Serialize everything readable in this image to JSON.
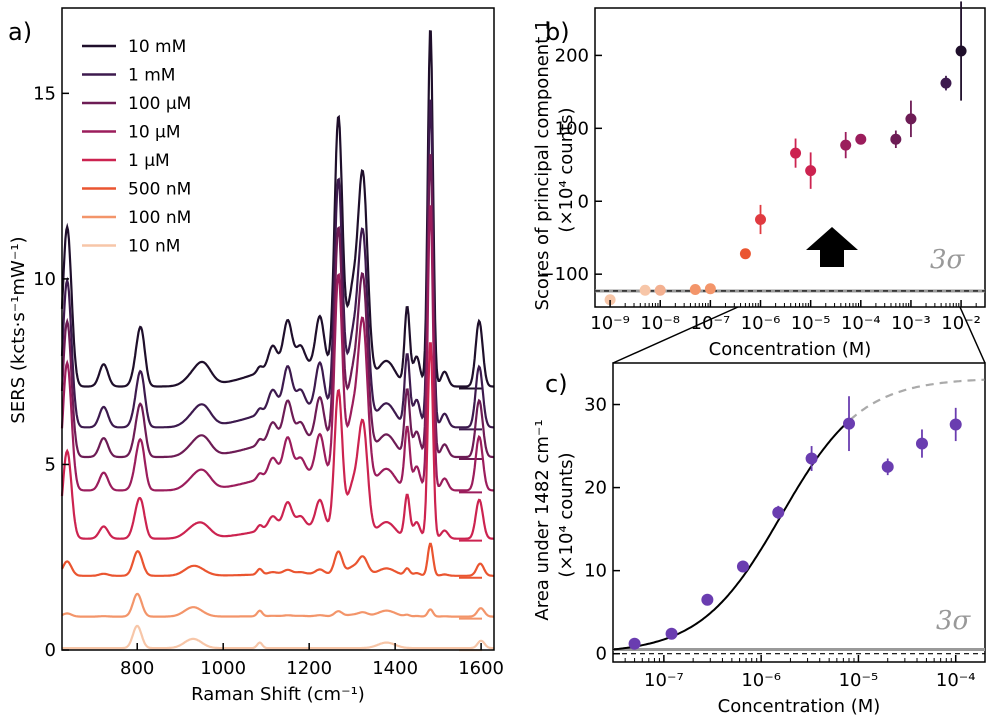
{
  "panel_labels": {
    "a": "a)",
    "b": "b)",
    "c": "c)"
  },
  "sigma_label": "3σ",
  "colors": {
    "c10mM": "#1f0f2b",
    "c1mM": "#3d1a4e",
    "c100uM": "#6d1c55",
    "c10uM": "#9b1d5c",
    "c1uM": "#cc2350",
    "c500nM": "#ea5530",
    "c100nM": "#f3956a",
    "c10nM": "#f7c6a8",
    "purple": "#6a3db0",
    "sigma_line": "#999999"
  },
  "chart_data": [
    {
      "id": "a",
      "type": "line",
      "title": "",
      "xlabel": "Raman Shift (cm⁻¹)",
      "ylabel": "SERS (kcts·s⁻¹mW⁻¹)",
      "xlim": [
        625,
        1630
      ],
      "ylim": [
        0,
        17.3
      ],
      "xticks": [
        800,
        1000,
        1200,
        1400,
        1600
      ],
      "yticks": [
        0,
        5,
        10,
        15
      ],
      "legend_position": "top-left",
      "series": [
        {
          "name": "10 mM",
          "color": "#1f0f2b",
          "baseline": 7.1,
          "scale": 1.0
        },
        {
          "name": "1 mM",
          "color": "#3d1a4e",
          "baseline": 6.0,
          "scale": 0.92
        },
        {
          "name": "100 μM",
          "color": "#6d1c55",
          "baseline": 5.2,
          "scale": 0.85
        },
        {
          "name": "10 μM",
          "color": "#9b1d5c",
          "baseline": 4.3,
          "scale": 0.8
        },
        {
          "name": "1 μM",
          "color": "#cc2350",
          "baseline": 3.0,
          "scale": 0.55
        },
        {
          "name": "500 nM",
          "color": "#ea5530",
          "baseline": 2.0,
          "scale": 0.09
        },
        {
          "name": "100 nM",
          "color": "#f3956a",
          "baseline": 0.9,
          "scale": 0.02
        },
        {
          "name": "10 nM",
          "color": "#f7c6a8",
          "baseline": 0.05,
          "scale": 0.0
        }
      ]
    },
    {
      "id": "b",
      "type": "scatter",
      "title": "",
      "xlabel": "Concentration (M)",
      "ylabel": "Scores of principal component 1",
      "ylabel2": "(×10⁴ counts)",
      "xscale": "log",
      "xlim": [
        5e-10,
        0.03
      ],
      "ylim": [
        -145,
        265
      ],
      "yticks": [
        -100,
        0,
        100,
        200
      ],
      "xticks": [
        "10⁻⁹",
        "10⁻⁸",
        "10⁻⁷",
        "10⁻⁶",
        "10⁻⁵",
        "10⁻⁴",
        "10⁻³",
        "10⁻²"
      ],
      "sigma_level": -123,
      "points": [
        {
          "x": 1e-09,
          "y": -135,
          "err": 0,
          "color": "#f7c6a8"
        },
        {
          "x": 5e-09,
          "y": -122,
          "err": 0,
          "color": "#f7c6a8"
        },
        {
          "x": 1e-08,
          "y": -122,
          "err": 0,
          "color": "#f3b090"
        },
        {
          "x": 5e-08,
          "y": -121,
          "err": 0,
          "color": "#f3956a"
        },
        {
          "x": 1e-07,
          "y": -120,
          "err": 0,
          "color": "#f3956a"
        },
        {
          "x": 5e-07,
          "y": -72,
          "err": 0,
          "color": "#ea5530"
        },
        {
          "x": 1e-06,
          "y": -25,
          "err": 20,
          "color": "#e03a40"
        },
        {
          "x": 5e-06,
          "y": 66,
          "err": 20,
          "color": "#cc2350"
        },
        {
          "x": 1e-05,
          "y": 42,
          "err": 25,
          "color": "#cc2350"
        },
        {
          "x": 5e-05,
          "y": 77,
          "err": 18,
          "color": "#9b1d5c"
        },
        {
          "x": 0.0001,
          "y": 85,
          "err": 0,
          "color": "#9b1d5c"
        },
        {
          "x": 0.0005,
          "y": 85,
          "err": 12,
          "color": "#6d1c55"
        },
        {
          "x": 0.001,
          "y": 113,
          "err": 25,
          "color": "#6d1c55"
        },
        {
          "x": 0.005,
          "y": 162,
          "err": 10,
          "color": "#3d1a4e"
        },
        {
          "x": 0.01,
          "y": 206,
          "err": 68,
          "color": "#1f0f2b"
        }
      ]
    },
    {
      "id": "c",
      "type": "scatter",
      "title": "",
      "xlabel": "Concentration (M)",
      "ylabel": "Area under 1482 cm⁻¹",
      "ylabel2": "(×10⁴ counts)",
      "xscale": "log",
      "xlim": [
        3e-08,
        0.0002
      ],
      "ylim": [
        -1,
        35
      ],
      "yticks": [
        0,
        10,
        20,
        30
      ],
      "xticks": [
        "10⁻⁷",
        "10⁻⁶",
        "10⁻⁵",
        "10⁻⁴"
      ],
      "sigma_level": 0.5,
      "fit": {
        "type": "hill",
        "max": 33.2,
        "k": 1.6e-06,
        "n": 1.05
      },
      "points": [
        {
          "x": 5e-08,
          "y": 1.2,
          "err": 0.4
        },
        {
          "x": 1.2e-07,
          "y": 2.4,
          "err": 0.4
        },
        {
          "x": 2.8e-07,
          "y": 6.5,
          "err": 0.5
        },
        {
          "x": 6.5e-07,
          "y": 10.5,
          "err": 0.6
        },
        {
          "x": 1.5e-06,
          "y": 17.0,
          "err": 0.8
        },
        {
          "x": 3.3e-06,
          "y": 23.5,
          "err": 1.5
        },
        {
          "x": 8e-06,
          "y": 27.7,
          "err": 3.3
        },
        {
          "x": 2e-05,
          "y": 22.5,
          "err": 1.0
        },
        {
          "x": 4.5e-05,
          "y": 25.3,
          "err": 1.7
        },
        {
          "x": 0.0001,
          "y": 27.6,
          "err": 2.0
        }
      ]
    }
  ]
}
